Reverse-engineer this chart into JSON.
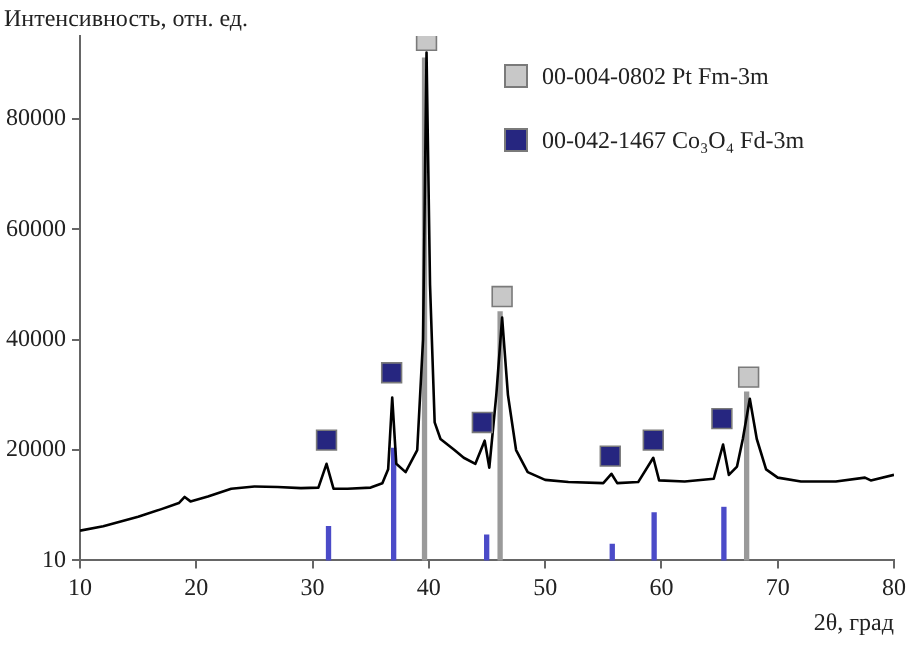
{
  "chart_data": {
    "type": "line",
    "xlabel": "2θ, град",
    "ylabel": "Интенсивность, отн. ед.",
    "xlim": [
      10,
      80
    ],
    "xticks": [
      10,
      20,
      30,
      40,
      50,
      60,
      70,
      80
    ],
    "ylim": [
      10,
      95000
    ],
    "yticks": [
      10,
      20000,
      40000,
      60000,
      80000
    ],
    "grid": false,
    "legend": "top right",
    "series": [
      {
        "color": "#000000",
        "marker": "none",
        "x": [
          10,
          12,
          15,
          17,
          18.5,
          19,
          19.5,
          21,
          23,
          25,
          27,
          29,
          30.5,
          31.2,
          31.8,
          33,
          35,
          36,
          36.5,
          36.85,
          37.2,
          38,
          39,
          39.5,
          39.8,
          40.1,
          40.5,
          41,
          42.2,
          43,
          44,
          44.8,
          45.2,
          45.8,
          46.3,
          46.8,
          47.5,
          48.5,
          50,
          52,
          55,
          55.7,
          56.2,
          58,
          59.3,
          59.8,
          62,
          64.5,
          65.3,
          65.8,
          66.5,
          67,
          67.6,
          68.2,
          69,
          70,
          72,
          75,
          77.5,
          78,
          80
        ],
        "values": [
          5400,
          6200,
          7900,
          9300,
          10400,
          11500,
          10700,
          11600,
          13000,
          13400,
          13300,
          13100,
          13200,
          17500,
          13000,
          13000,
          13200,
          14000,
          16500,
          29500,
          17500,
          16000,
          20000,
          40000,
          92000,
          50000,
          25000,
          22000,
          20000,
          18600,
          17500,
          21700,
          16800,
          30000,
          44000,
          30000,
          20000,
          16000,
          14600,
          14200,
          14000,
          15700,
          14000,
          14200,
          18600,
          14500,
          14300,
          14800,
          21000,
          15500,
          17000,
          22000,
          29300,
          22000,
          16500,
          15000,
          14300,
          14300,
          15000,
          14500,
          15500
        ]
      },
      {
        "type": "bar",
        "color": "#9a9a9a",
        "x": [
          39.8,
          46.3,
          67.5
        ],
        "values": [
          91000,
          45000,
          30500
        ]
      },
      {
        "type": "bar",
        "color": "#4b4bc8",
        "x": [
          31.2,
          36.8,
          44.8,
          55.6,
          59.2,
          65.2
        ],
        "values": [
          6100,
          20300,
          4600,
          2900,
          8600,
          9600
        ]
      },
      {
        "type": "scatter",
        "name": "00-004-0802 Pt Fm-3m",
        "color": "#c8c8c8",
        "marker": "square",
        "x": [
          39.8,
          46.3,
          67.5
        ],
        "values": [
          94200,
          47800,
          33200
        ]
      },
      {
        "type": "scatter",
        "name": "00-042-1467 Co₃O₄ Fd-3m",
        "color": "#262680",
        "marker": "square",
        "x": [
          31.2,
          36.8,
          44.6,
          55.6,
          59.3,
          65.2
        ],
        "values": [
          21800,
          34000,
          25000,
          18900,
          21800,
          25700
        ]
      }
    ]
  }
}
